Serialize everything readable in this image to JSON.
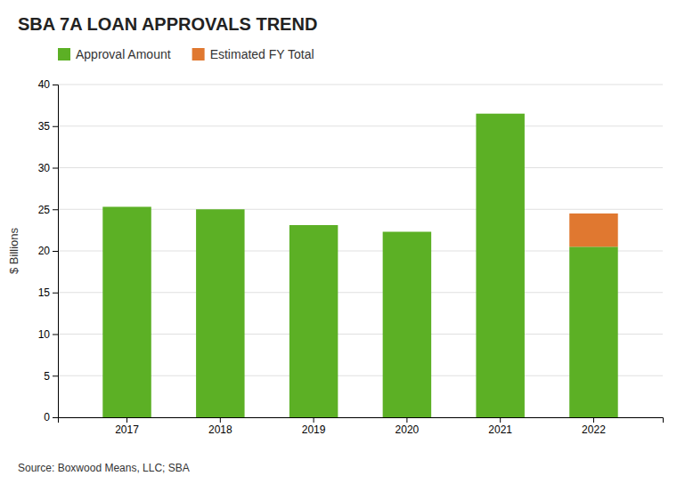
{
  "chart_data": {
    "type": "bar",
    "title": "SBA 7A LOAN APPROVALS TREND",
    "categories": [
      "2017",
      "2018",
      "2019",
      "2020",
      "2021",
      "2022"
    ],
    "series": [
      {
        "name": "Approval Amount",
        "color": "#5cb025",
        "values": [
          25.3,
          25.0,
          23.1,
          22.3,
          36.5,
          20.5
        ]
      },
      {
        "name": "Estimated FY Total",
        "color": "#e07830",
        "values": [
          0,
          0,
          0,
          0,
          0,
          4.0
        ]
      }
    ],
    "stacked": true,
    "y_label": "$ Billions",
    "ylim": [
      0,
      40
    ],
    "yticks": [
      0,
      5,
      10,
      15,
      20,
      25,
      30,
      35,
      40
    ],
    "grid": true,
    "legend": "top left",
    "annotations": [
      "Source: Boxwood Means, LLC; SBA"
    ]
  }
}
